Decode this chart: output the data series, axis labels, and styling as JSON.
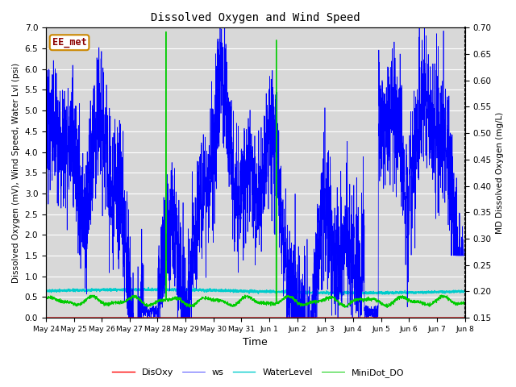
{
  "title": "Dissolved Oxygen and Wind Speed",
  "ylabel_left": "Dissolved Oxygen (mV), Wind Speed, Water Lvl (psi)",
  "ylabel_right": "MD Dissolved Oxygen (mg/L)",
  "xlabel": "Time",
  "ylim_left": [
    0.0,
    7.0
  ],
  "ylim_right": [
    0.15,
    0.7
  ],
  "x_ticks": [
    "May 24",
    "May 25",
    "May 26",
    "May 27",
    "May 28",
    "May 29",
    "May 30",
    "May 31",
    "Jun 1",
    "Jun 2",
    "Jun 3",
    "Jun 4",
    "Jun 5",
    "Jun 6",
    "Jun 7",
    "Jun 8"
  ],
  "yticks_left": [
    0.0,
    0.5,
    1.0,
    1.5,
    2.0,
    2.5,
    3.0,
    3.5,
    4.0,
    4.5,
    5.0,
    5.5,
    6.0,
    6.5,
    7.0
  ],
  "yticks_right": [
    0.15,
    0.2,
    0.25,
    0.3,
    0.35,
    0.4,
    0.45,
    0.5,
    0.55,
    0.6,
    0.65,
    0.7
  ],
  "annotation": "EE_met",
  "colors": {
    "DisOxy": "#ff0000",
    "ws": "#0000ff",
    "WaterLevel": "#00cccc",
    "MiniDot_DO": "#00cc00",
    "background": "#d8d8d8",
    "grid": "#ffffff"
  },
  "legend_labels": [
    "DisOxy",
    "ws",
    "WaterLevel",
    "MiniDot_DO"
  ]
}
